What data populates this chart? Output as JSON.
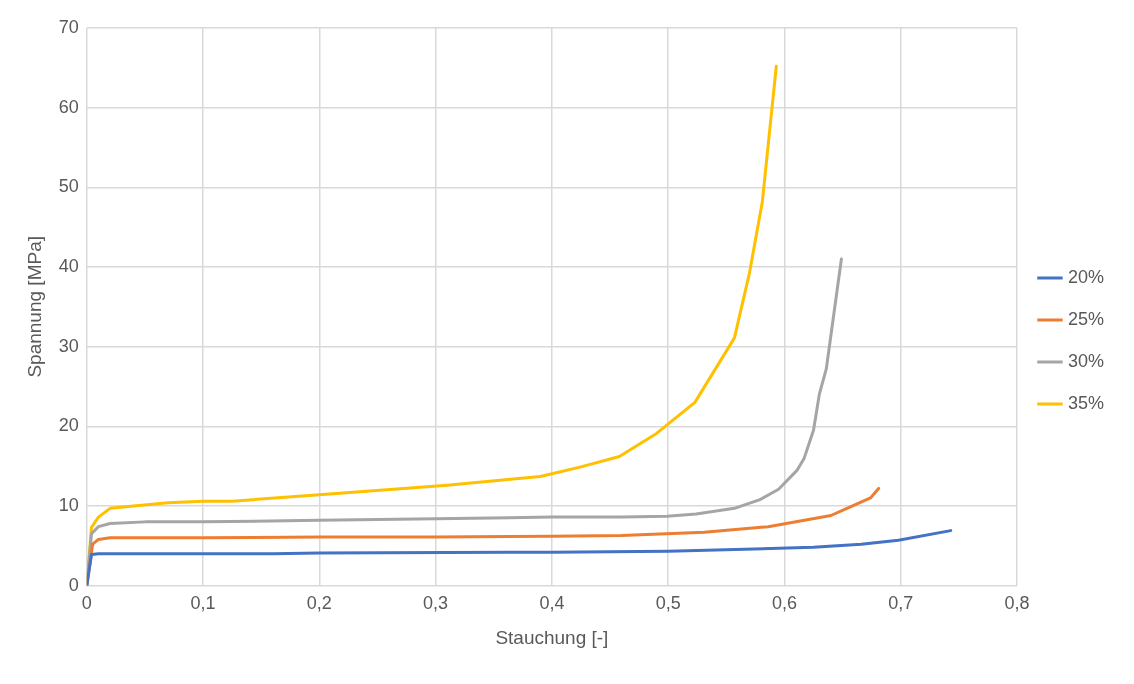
{
  "chart_data": {
    "type": "line",
    "xlabel": "Stauchung [-]",
    "ylabel": "Spannung [MPa]",
    "xlim": [
      0,
      0.8
    ],
    "xticks": [
      0,
      {
        "value": 0.1,
        "label": "0,1"
      },
      {
        "value": 0.2,
        "label": "0,2"
      },
      {
        "value": 0.3,
        "label": "0,3"
      },
      {
        "value": 0.4,
        "label": "0,4"
      },
      {
        "value": 0.5,
        "label": "0,5"
      },
      {
        "value": 0.6,
        "label": "0,6"
      },
      {
        "value": 0.7,
        "label": "0,7"
      },
      {
        "value": 0.8,
        "label": "0,8"
      }
    ],
    "ylim": [
      0,
      70
    ],
    "yticks": [
      0,
      10,
      20,
      30,
      40,
      50,
      60,
      70
    ],
    "grid": true,
    "legend": "right",
    "marker": "none",
    "line_style": "solid",
    "series": [
      {
        "name": "20%",
        "color": "#4472c4",
        "x": [
          0,
          0.004,
          0.01,
          0.05,
          0.16,
          0.2,
          0.4,
          0.5,
          0.625,
          0.666,
          0.698,
          0.743
        ],
        "values": [
          0,
          3.9,
          4.0,
          4.0,
          4.0,
          4.1,
          4.2,
          4.3,
          4.8,
          5.2,
          5.7,
          6.9
        ]
      },
      {
        "name": "25%",
        "color": "#ed7d31",
        "x": [
          0,
          0.005,
          0.01,
          0.02,
          0.1,
          0.2,
          0.3,
          0.4,
          0.46,
          0.531,
          0.586,
          0.64,
          0.674,
          0.681
        ],
        "values": [
          0,
          5.2,
          5.8,
          6.0,
          6.0,
          6.1,
          6.1,
          6.2,
          6.3,
          6.7,
          7.4,
          8.8,
          11.0,
          12.2
        ]
      },
      {
        "name": "30%",
        "color": "#a5a5a5",
        "x": [
          0,
          0.004,
          0.01,
          0.02,
          0.05,
          0.1,
          0.2,
          0.3,
          0.4,
          0.46,
          0.499,
          0.524,
          0.557,
          0.579,
          0.595,
          0.611,
          0.617,
          0.625,
          0.63,
          0.636,
          0.649
        ],
        "values": [
          0,
          6.5,
          7.4,
          7.8,
          8.0,
          8.0,
          8.2,
          8.4,
          8.6,
          8.6,
          8.7,
          9.0,
          9.7,
          10.8,
          12.1,
          14.5,
          16.0,
          19.5,
          24.0,
          27.2,
          41.0
        ]
      },
      {
        "name": "35%",
        "color": "#ffc000",
        "x": [
          0,
          0.004,
          0.01,
          0.02,
          0.04,
          0.07,
          0.1,
          0.125,
          0.2,
          0.31,
          0.36,
          0.39,
          0.425,
          0.458,
          0.49,
          0.523,
          0.557,
          0.57,
          0.581,
          0.593
        ],
        "values": [
          0,
          7.3,
          8.6,
          9.7,
          10.0,
          10.4,
          10.6,
          10.6,
          11.4,
          12.6,
          13.3,
          13.7,
          14.9,
          16.2,
          19.1,
          23.0,
          31.1,
          39.3,
          48.2,
          65.2
        ]
      }
    ]
  }
}
